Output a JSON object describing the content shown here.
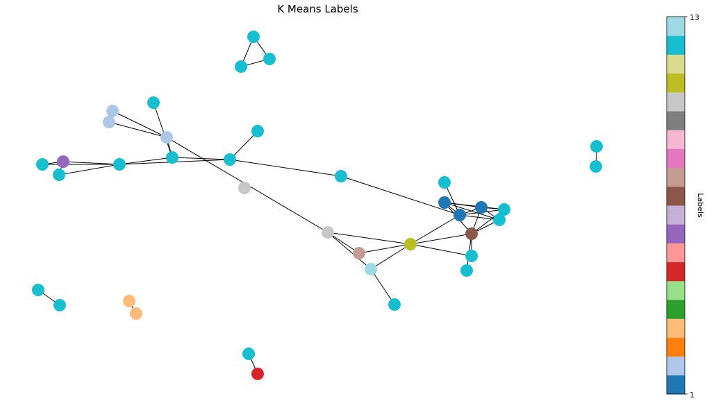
{
  "chart_data": {
    "type": "network",
    "title": "K Means Labels",
    "colorbar": {
      "label": "Labels",
      "min": 1,
      "max": 13,
      "tick_labels": [
        "13",
        "1"
      ],
      "colors": [
        "#1f77b4",
        "#aec7e8",
        "#ff7f0e",
        "#ffbb78",
        "#2ca02c",
        "#98df8a",
        "#d62728",
        "#ff9896",
        "#9467bd",
        "#c5b0d5",
        "#8c564b",
        "#c49c94",
        "#e377c2",
        "#f7b6d2",
        "#7f7f7f",
        "#c7c7c7",
        "#bcbd22",
        "#dbdb8d",
        "#17becf",
        "#9edae5"
      ]
    },
    "nodes": [
      {
        "id": "n1",
        "color": "#17becf"
      },
      {
        "id": "n2",
        "color": "#17becf"
      },
      {
        "id": "n3",
        "color": "#17becf"
      },
      {
        "id": "n4",
        "color": "#aec7e8"
      },
      {
        "id": "n5",
        "color": "#aec7e8"
      },
      {
        "id": "n6",
        "color": "#17becf"
      },
      {
        "id": "n7",
        "color": "#aec7e8"
      },
      {
        "id": "n8",
        "color": "#17becf"
      },
      {
        "id": "n9",
        "color": "#17becf"
      },
      {
        "id": "n10",
        "color": "#9467bd"
      },
      {
        "id": "n11",
        "color": "#17becf"
      },
      {
        "id": "n12",
        "color": "#17becf"
      },
      {
        "id": "n13",
        "color": "#17becf"
      },
      {
        "id": "n14",
        "color": "#17becf"
      },
      {
        "id": "n15",
        "color": "#c7c7c7"
      },
      {
        "id": "n16",
        "color": "#17becf"
      },
      {
        "id": "n17",
        "color": "#c7c7c7"
      },
      {
        "id": "n18",
        "color": "#c49c94"
      },
      {
        "id": "n19",
        "color": "#9edae5"
      },
      {
        "id": "n20",
        "color": "#17becf"
      },
      {
        "id": "n21",
        "color": "#bcbd22"
      },
      {
        "id": "n22",
        "color": "#17becf"
      },
      {
        "id": "n23",
        "color": "#1f77b4"
      },
      {
        "id": "n24",
        "color": "#1f77b4"
      },
      {
        "id": "n25",
        "color": "#1f77b4"
      },
      {
        "id": "n26",
        "color": "#17becf"
      },
      {
        "id": "n27",
        "color": "#17becf"
      },
      {
        "id": "n28",
        "color": "#8c564b"
      },
      {
        "id": "n29",
        "color": "#17becf"
      },
      {
        "id": "n30",
        "color": "#17becf"
      },
      {
        "id": "n31",
        "color": "#17becf"
      },
      {
        "id": "n32",
        "color": "#17becf"
      },
      {
        "id": "n33",
        "color": "#17becf"
      },
      {
        "id": "n34",
        "color": "#17becf"
      },
      {
        "id": "n35",
        "color": "#ffbb78"
      },
      {
        "id": "n36",
        "color": "#ffbb78"
      },
      {
        "id": "n37",
        "color": "#17becf"
      },
      {
        "id": "n38",
        "color": "#d62728"
      }
    ],
    "edges": [
      [
        "n1",
        "n2"
      ],
      [
        "n1",
        "n3"
      ],
      [
        "n2",
        "n3"
      ],
      [
        "n4",
        "n7"
      ],
      [
        "n5",
        "n7"
      ],
      [
        "n6",
        "n8"
      ],
      [
        "n7",
        "n8"
      ],
      [
        "n7",
        "n17"
      ],
      [
        "n8",
        "n11"
      ],
      [
        "n8",
        "n13"
      ],
      [
        "n9",
        "n10"
      ],
      [
        "n9",
        "n11"
      ],
      [
        "n10",
        "n11"
      ],
      [
        "n10",
        "n12"
      ],
      [
        "n12",
        "n11"
      ],
      [
        "n11",
        "n13"
      ],
      [
        "n13",
        "n14"
      ],
      [
        "n13",
        "n16"
      ],
      [
        "n16",
        "n24"
      ],
      [
        "n17",
        "n18"
      ],
      [
        "n17",
        "n19"
      ],
      [
        "n17",
        "n21"
      ],
      [
        "n18",
        "n21"
      ],
      [
        "n19",
        "n21"
      ],
      [
        "n19",
        "n20"
      ],
      [
        "n21",
        "n24"
      ],
      [
        "n21",
        "n28"
      ],
      [
        "n21",
        "n29"
      ],
      [
        "n22",
        "n24"
      ],
      [
        "n23",
        "n24"
      ],
      [
        "n23",
        "n25"
      ],
      [
        "n23",
        "n26"
      ],
      [
        "n23",
        "n27"
      ],
      [
        "n23",
        "n28"
      ],
      [
        "n24",
        "n25"
      ],
      [
        "n24",
        "n26"
      ],
      [
        "n24",
        "n27"
      ],
      [
        "n25",
        "n26"
      ],
      [
        "n25",
        "n27"
      ],
      [
        "n25",
        "n28"
      ],
      [
        "n26",
        "n28"
      ],
      [
        "n27",
        "n28"
      ],
      [
        "n28",
        "n29"
      ],
      [
        "n28",
        "n30"
      ],
      [
        "n31",
        "n32"
      ],
      [
        "n33",
        "n34"
      ],
      [
        "n35",
        "n36"
      ],
      [
        "n37",
        "n38"
      ]
    ]
  }
}
